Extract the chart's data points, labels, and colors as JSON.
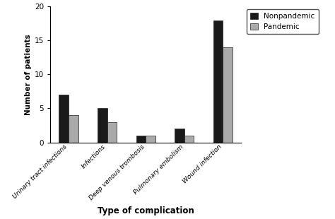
{
  "categories": [
    "Urinary tract infections",
    "Infections",
    "Deep venous trombosis",
    "Pulmonary embolism",
    "Wound infection"
  ],
  "nonpandemic": [
    7,
    5,
    1,
    2,
    18
  ],
  "pandemic": [
    4,
    3,
    1,
    1,
    14
  ],
  "nonpandemic_color": "#1a1a1a",
  "pandemic_color": "#aaaaaa",
  "bar_edge_color": "#1a1a1a",
  "ylabel": "Number of patients",
  "xlabel": "Type of complication",
  "ylim": [
    0,
    20
  ],
  "yticks": [
    0,
    5,
    10,
    15,
    20
  ],
  "legend_labels": [
    "Nonpandemic",
    "Pandemic"
  ],
  "bar_width": 0.25,
  "background_color": "#ffffff"
}
